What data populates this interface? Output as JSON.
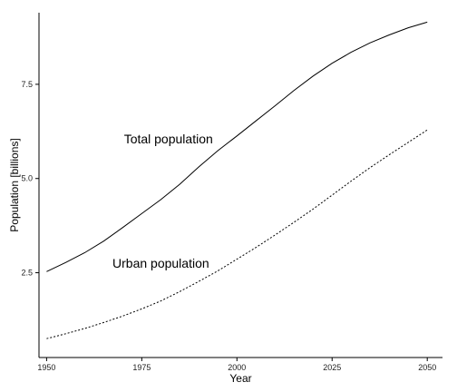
{
  "chart_data": {
    "type": "line",
    "title": "",
    "xlabel": "Year",
    "ylabel": "Population [billions]",
    "xlim": [
      1948,
      2054
    ],
    "ylim": [
      0.25,
      9.4
    ],
    "x_ticks": [
      1950,
      1975,
      2000,
      2025,
      2050
    ],
    "y_ticks": [
      2.5,
      5.0,
      7.5
    ],
    "x_tick_labels": [
      "1950",
      "1975",
      "2000",
      "2025",
      "2050"
    ],
    "y_tick_labels": [
      "2.5",
      "5.0",
      "7.5"
    ],
    "grid": false,
    "legend": "none",
    "x": [
      1950,
      1955,
      1960,
      1965,
      1970,
      1975,
      1980,
      1985,
      1990,
      1995,
      2000,
      2005,
      2010,
      2015,
      2020,
      2025,
      2030,
      2035,
      2040,
      2045,
      2050
    ],
    "series": [
      {
        "name": "Total population",
        "line_style": "solid",
        "color": "#000000",
        "values": [
          2.53,
          2.77,
          3.03,
          3.34,
          3.7,
          4.07,
          4.44,
          4.85,
          5.31,
          5.74,
          6.13,
          6.53,
          6.93,
          7.34,
          7.72,
          8.06,
          8.35,
          8.6,
          8.81,
          9.0,
          9.15
        ]
      },
      {
        "name": "Urban population",
        "line_style": "dotted",
        "color": "#000000",
        "values": [
          0.75,
          0.88,
          1.02,
          1.18,
          1.35,
          1.54,
          1.75,
          2.0,
          2.27,
          2.55,
          2.86,
          3.17,
          3.5,
          3.84,
          4.19,
          4.56,
          4.93,
          5.29,
          5.63,
          5.96,
          6.29
        ]
      }
    ],
    "annotations": [
      {
        "text": "Total population",
        "x": 1982,
        "y": 6.05
      },
      {
        "text": "Urban population",
        "x": 1980,
        "y": 2.75
      }
    ]
  }
}
